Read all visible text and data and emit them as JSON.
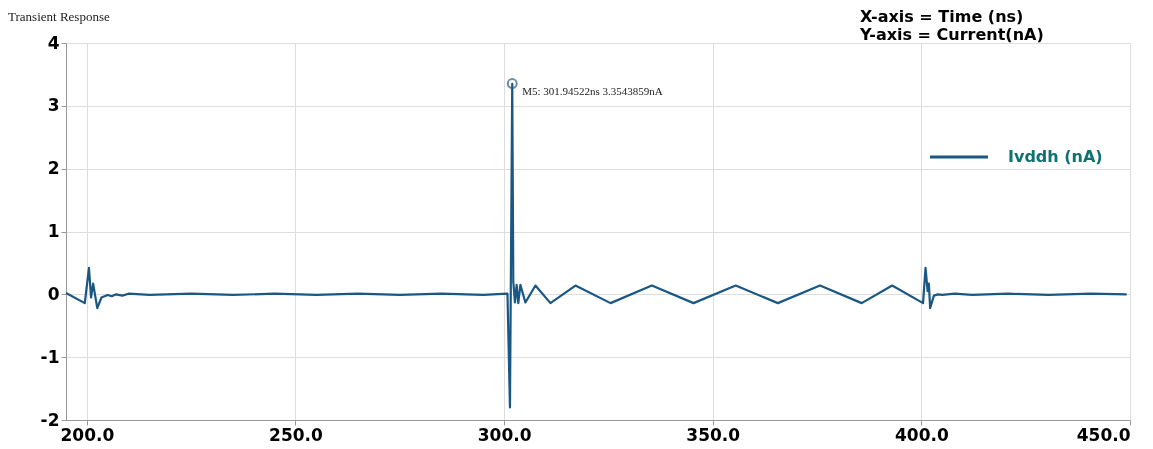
{
  "chart_data": {
    "type": "line",
    "title": "Transient Response",
    "x": [
      195,
      199.5,
      200.5,
      201,
      201.5,
      202.5,
      203.5,
      205,
      206,
      207,
      208.5,
      210,
      215,
      225,
      235,
      245,
      255,
      265,
      275,
      285,
      295,
      300.8,
      301.4,
      301.94522,
      302.2,
      302.6,
      303.0,
      303.4,
      303.9,
      305.1,
      307.5,
      311.1,
      317.1,
      325.5,
      335.4,
      345.4,
      355.5,
      365.6,
      375.7,
      385.7,
      393,
      400.4,
      401,
      401.5,
      401.8,
      402.1,
      403,
      404,
      405,
      408,
      412.2,
      420.8,
      430.5,
      440.6,
      449.2
    ],
    "series": [
      {
        "name": "Ivddh (nA)",
        "color": "#1a5783",
        "values": [
          0.02,
          -0.14,
          0.42,
          -0.05,
          0.17,
          -0.22,
          -0.05,
          -0.01,
          -0.03,
          0,
          -0.02,
          0.01,
          -0.01,
          0.01,
          -0.01,
          0.01,
          -0.01,
          0.01,
          -0.01,
          0.01,
          -0.01,
          0.01,
          -1.8,
          3.35,
          0.2,
          -0.13,
          0.15,
          -0.14,
          0.15,
          -0.13,
          0.14,
          -0.14,
          0.14,
          -0.14,
          0.14,
          -0.14,
          0.14,
          -0.14,
          0.14,
          -0.14,
          0.14,
          -0.14,
          0.42,
          0.05,
          0.17,
          -0.22,
          -0.02,
          0,
          -0.01,
          0.01,
          -0.01,
          0.01,
          -0.01,
          0.01,
          0
        ]
      }
    ],
    "xlim": [
      195,
      450
    ],
    "ylim": [
      -2,
      4
    ],
    "xticks": [
      {
        "value": 200,
        "label": "200.0"
      },
      {
        "value": 250,
        "label": "250.0"
      },
      {
        "value": 300,
        "label": "300.0"
      },
      {
        "value": 350,
        "label": "350.0"
      },
      {
        "value": 400,
        "label": "400.0"
      },
      {
        "value": 450,
        "label": "450.0"
      }
    ],
    "yticks": [
      -2,
      -1,
      0,
      1,
      2,
      3,
      4
    ],
    "grid": true,
    "legend": "top right",
    "line_style": "solid",
    "marker": "none",
    "annotations": [
      {
        "text": "M5: 301.94522ns 3.3543859nA",
        "x": 301.94522,
        "y": 3.3543859
      },
      "X-axis = Time (ns)",
      "Y-axis = Current(nA)"
    ]
  }
}
